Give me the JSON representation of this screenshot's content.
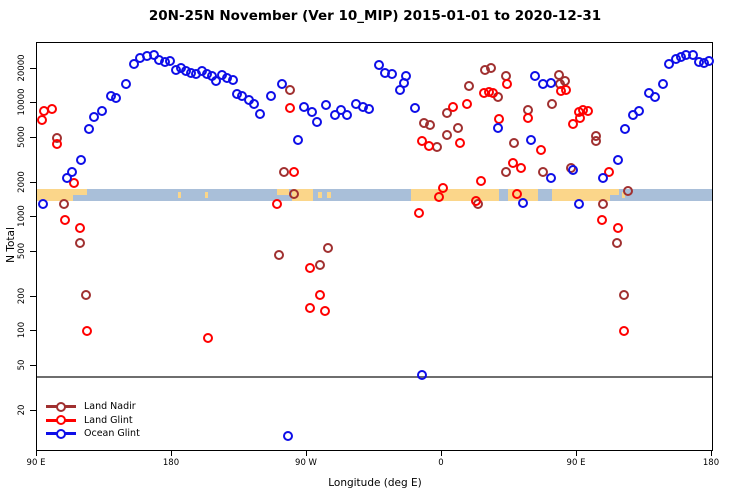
{
  "title": "20N-25N November (Ver 10_MIP)   2015-01-01 to 2020-12-31",
  "chart_data": {
    "type": "scatter",
    "title": "20N-25N November (Ver 10_MIP)   2015-01-01 to 2020-12-31",
    "xlabel": "Longitude (deg E)",
    "ylabel": "N Total",
    "x_axis": {
      "range": [
        90,
        540
      ],
      "ticks": [
        {
          "value": 90,
          "label": "90 E"
        },
        {
          "value": 180,
          "label": "180"
        },
        {
          "value": 270,
          "label": "90 W"
        },
        {
          "value": 360,
          "label": "0"
        },
        {
          "value": 450,
          "label": "90 E"
        },
        {
          "value": 540,
          "label": "180"
        }
      ]
    },
    "y_axis": {
      "scale": "log",
      "range": [
        8,
        34000
      ],
      "ticks": [
        20,
        50,
        100,
        200,
        500,
        1000,
        2000,
        5000,
        10000,
        20000
      ]
    },
    "reference_line": {
      "value": 40,
      "color": "#6e6e6e"
    },
    "map_strip": {
      "n_range": [
        1390,
        1770
      ],
      "ocean_color": "#a9bfd9",
      "land_color": "#fbd68a",
      "land_segments": [
        {
          "from": 90,
          "to": 114,
          "part": "full"
        },
        {
          "from": 114,
          "to": 123,
          "part": "top"
        },
        {
          "from": 184,
          "to": 186,
          "part": "mid"
        },
        {
          "from": 202,
          "to": 204,
          "part": "mid"
        },
        {
          "from": 250,
          "to": 258,
          "part": "top"
        },
        {
          "from": 260,
          "to": 274,
          "part": "full"
        },
        {
          "from": 277,
          "to": 280,
          "part": "mid"
        },
        {
          "from": 283,
          "to": 286,
          "part": "mid"
        },
        {
          "from": 339,
          "to": 398,
          "part": "full"
        },
        {
          "from": 404,
          "to": 424,
          "part": "full"
        },
        {
          "from": 433,
          "to": 472,
          "part": "full"
        },
        {
          "from": 472,
          "to": 478,
          "part": "top"
        },
        {
          "from": 480,
          "to": 482,
          "part": "mid"
        }
      ]
    },
    "legend": {
      "position": "bottom-left",
      "items": [
        "Land Nadir",
        "Land Glint",
        "Ocean Glint"
      ]
    },
    "series": [
      {
        "name": "Land Nadir",
        "color": "#a03030",
        "points": [
          [
            103.3,
            5000
          ],
          [
            108,
            1300
          ],
          [
            118.7,
            590
          ],
          [
            122.7,
            210
          ],
          [
            251.3,
            470
          ],
          [
            254.7,
            2500
          ],
          [
            258.7,
            13000
          ],
          [
            261.3,
            1600
          ],
          [
            278.7,
            380
          ],
          [
            284,
            540
          ],
          [
            348,
            6700
          ],
          [
            352,
            6400
          ],
          [
            356.7,
            4100
          ],
          [
            363.3,
            5300
          ],
          [
            363.3,
            8300
          ],
          [
            370.7,
            6100
          ],
          [
            378,
            14300
          ],
          [
            384,
            1300
          ],
          [
            388.7,
            19500
          ],
          [
            392.7,
            20300
          ],
          [
            397.3,
            11300
          ],
          [
            402.7,
            17300
          ],
          [
            402.7,
            2500
          ],
          [
            408,
            4500
          ],
          [
            417.3,
            8800
          ],
          [
            427.3,
            2500
          ],
          [
            433.3,
            9900
          ],
          [
            438,
            17700
          ],
          [
            438.7,
            14900
          ],
          [
            442,
            15800
          ],
          [
            446,
            2700
          ],
          [
            462.7,
            5200
          ],
          [
            462.7,
            4700
          ],
          [
            467.3,
            1300
          ],
          [
            476.7,
            590
          ],
          [
            481.3,
            210
          ],
          [
            484,
            1700
          ]
        ]
      },
      {
        "name": "Land Glint",
        "color": "#ff0000",
        "points": [
          [
            93.3,
            7100
          ],
          [
            94.7,
            8600
          ],
          [
            100,
            8900
          ],
          [
            103.3,
            4400
          ],
          [
            108.7,
            950
          ],
          [
            114.7,
            2000
          ],
          [
            118.7,
            810
          ],
          [
            123.3,
            100
          ],
          [
            204,
            88
          ],
          [
            250,
            1300
          ],
          [
            258.7,
            9100
          ],
          [
            261.3,
            2500
          ],
          [
            272,
            360
          ],
          [
            272,
            160
          ],
          [
            278.7,
            210
          ],
          [
            282,
            150
          ],
          [
            344.7,
            1100
          ],
          [
            346.7,
            4700
          ],
          [
            351.3,
            4200
          ],
          [
            358,
            1500
          ],
          [
            360.7,
            1800
          ],
          [
            367.3,
            9300
          ],
          [
            372,
            4500
          ],
          [
            376.7,
            9900
          ],
          [
            382.7,
            1400
          ],
          [
            386,
            2100
          ],
          [
            388,
            12200
          ],
          [
            391.3,
            12500
          ],
          [
            394,
            12200
          ],
          [
            398,
            7300
          ],
          [
            403.3,
            14800
          ],
          [
            407.3,
            3000
          ],
          [
            410,
            1600
          ],
          [
            412.7,
            2700
          ],
          [
            417.3,
            7400
          ],
          [
            426,
            3900
          ],
          [
            439.3,
            12700
          ],
          [
            442.7,
            13000
          ],
          [
            447.3,
            6600
          ],
          [
            451.3,
            8400
          ],
          [
            452,
            7400
          ],
          [
            454,
            8800
          ],
          [
            457.3,
            8600
          ],
          [
            466.7,
            950
          ],
          [
            471.3,
            2500
          ],
          [
            477.3,
            810
          ],
          [
            481.3,
            100
          ]
        ]
      },
      {
        "name": "Ocean Glint",
        "color": "#0e0ee8",
        "points": [
          [
            94,
            1300
          ],
          [
            110,
            2200
          ],
          [
            113.3,
            2500
          ],
          [
            119.3,
            3200
          ],
          [
            124.7,
            6000
          ],
          [
            128,
            7600
          ],
          [
            133.3,
            8600
          ],
          [
            139.3,
            11600
          ],
          [
            142.7,
            11100
          ],
          [
            149.3,
            14800
          ],
          [
            154.7,
            22000
          ],
          [
            158.7,
            24900
          ],
          [
            163.3,
            25900
          ],
          [
            168,
            26500
          ],
          [
            171.3,
            23900
          ],
          [
            175.3,
            22900
          ],
          [
            178.7,
            23400
          ],
          [
            182.7,
            19500
          ],
          [
            186,
            20300
          ],
          [
            189.3,
            19100
          ],
          [
            192.7,
            18400
          ],
          [
            196,
            18000
          ],
          [
            200,
            19100
          ],
          [
            203.3,
            18000
          ],
          [
            206.7,
            17300
          ],
          [
            209.3,
            15700
          ],
          [
            213.3,
            17700
          ],
          [
            216.7,
            16600
          ],
          [
            220.7,
            16000
          ],
          [
            223.3,
            12000
          ],
          [
            226.7,
            11500
          ],
          [
            231.3,
            10800
          ],
          [
            234.7,
            9900
          ],
          [
            238.7,
            8100
          ],
          [
            246,
            11500
          ],
          [
            253.3,
            14800
          ],
          [
            257.3,
            12
          ],
          [
            264,
            4800
          ],
          [
            268,
            9300
          ],
          [
            273.3,
            8400
          ],
          [
            276.7,
            6800
          ],
          [
            282.7,
            9700
          ],
          [
            288.7,
            7900
          ],
          [
            292.7,
            8800
          ],
          [
            296.7,
            7900
          ],
          [
            302.7,
            9900
          ],
          [
            307.3,
            9300
          ],
          [
            311.3,
            8900
          ],
          [
            318,
            21700
          ],
          [
            322,
            18400
          ],
          [
            326.7,
            18000
          ],
          [
            332,
            13000
          ],
          [
            334.7,
            15000
          ],
          [
            336,
            17300
          ],
          [
            342,
            9100
          ],
          [
            346.7,
            41
          ],
          [
            397.3,
            6100
          ],
          [
            414,
            1330
          ],
          [
            419.3,
            4800
          ],
          [
            422,
            17300
          ],
          [
            427.3,
            14800
          ],
          [
            432.7,
            15000
          ],
          [
            432.7,
            2200
          ],
          [
            447.3,
            2600
          ],
          [
            451.3,
            1300
          ],
          [
            467.3,
            2200
          ],
          [
            477.3,
            3200
          ],
          [
            482,
            6000
          ],
          [
            487.3,
            7900
          ],
          [
            491.3,
            8600
          ],
          [
            498,
            12200
          ],
          [
            502,
            11300
          ],
          [
            507.3,
            14800
          ],
          [
            511.3,
            22100
          ],
          [
            516,
            24400
          ],
          [
            519.3,
            25400
          ],
          [
            522.7,
            26500
          ],
          [
            527.3,
            26500
          ],
          [
            531.3,
            22900
          ],
          [
            534.7,
            22400
          ],
          [
            538,
            23400
          ]
        ]
      }
    ]
  }
}
